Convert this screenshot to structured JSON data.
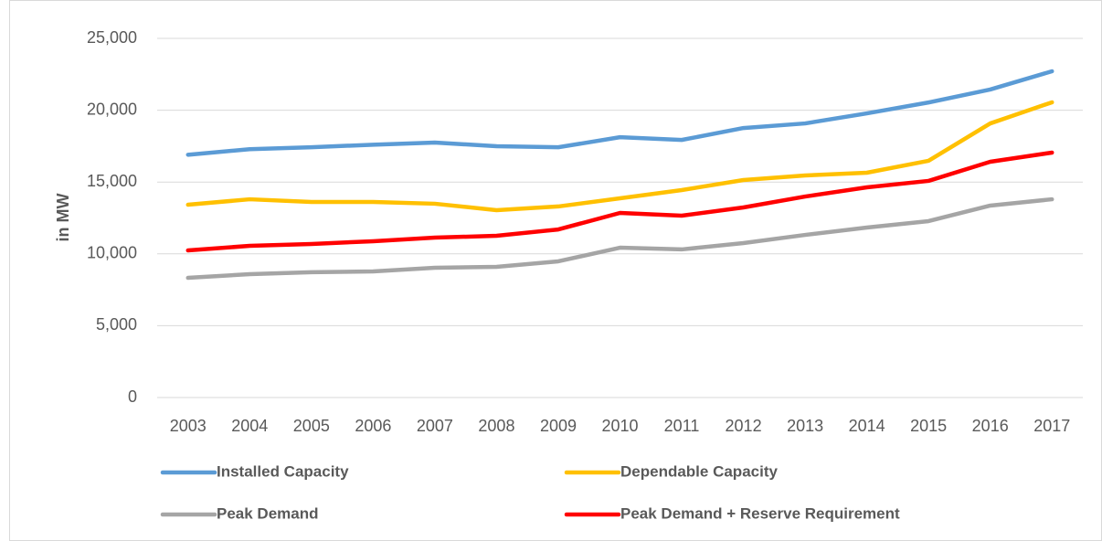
{
  "chart_data": {
    "type": "line",
    "y_label": "in MW",
    "categories": [
      "2003",
      "2004",
      "2005",
      "2006",
      "2007",
      "2008",
      "2009",
      "2010",
      "2011",
      "2012",
      "2013",
      "2014",
      "2015",
      "2016",
      "2017"
    ],
    "series": [
      {
        "name": "Installed Capacity",
        "color": "#5b9bd5",
        "values": [
          16900,
          17290,
          17420,
          17600,
          17750,
          17490,
          17420,
          18120,
          17930,
          18760,
          19080,
          19780,
          20540,
          21440,
          22710
        ]
      },
      {
        "name": "Dependable Capacity",
        "color": "#ffc000",
        "values": [
          13420,
          13800,
          13610,
          13610,
          13490,
          13040,
          13300,
          13870,
          14440,
          15140,
          15460,
          15650,
          16480,
          19080,
          20550
        ]
      },
      {
        "name": "Peak Demand",
        "color": "#a5a5a5",
        "values": [
          8330,
          8590,
          8720,
          8780,
          9030,
          9100,
          9480,
          10430,
          10310,
          10750,
          11320,
          11830,
          12280,
          13360,
          13800
        ]
      },
      {
        "name": "Peak Demand + Reserve Requirement",
        "color": "#ff0000",
        "values": [
          10240,
          10560,
          10690,
          10880,
          11130,
          11260,
          11700,
          12850,
          12660,
          13230,
          13990,
          14630,
          15080,
          16410,
          17050
        ]
      }
    ],
    "ylim": [
      0,
      25000
    ],
    "yticks": [
      0,
      {
        "value": 5000,
        "label": "5,000"
      },
      {
        "value": 10000,
        "label": "10,000"
      },
      {
        "value": 15000,
        "label": "15,000"
      },
      {
        "value": 20000,
        "label": "20,000"
      },
      {
        "value": 25000,
        "label": "25,000"
      }
    ],
    "grid": true,
    "legend": "bottom"
  }
}
